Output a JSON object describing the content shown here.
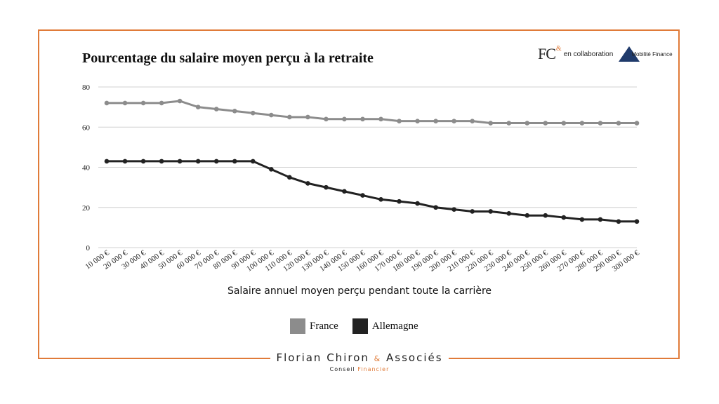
{
  "brand": {
    "fc_logo": "FC",
    "fc_amp": "&",
    "collaboration": "en collaboration",
    "mf_logo": "Mobilité Finance"
  },
  "footer": {
    "name_part1": "Florian Chiron",
    "amp": "&",
    "name_part2": "Associés",
    "sub_part1": "Conseil",
    "sub_part2": "Financier"
  },
  "colors": {
    "frame": "#e07b39",
    "france": "#8c8c8c",
    "allemagne": "#222222",
    "grid": "#d0d0d0"
  },
  "chart_data": {
    "type": "line",
    "title": "Pourcentage du salaire moyen perçu à la retraite",
    "xlabel": "Salaire annuel moyen perçu pendant toute la carrière",
    "ylabel": "",
    "ylim": [
      0,
      80
    ],
    "yticks": [
      "0",
      "20",
      "40",
      "60",
      "80"
    ],
    "grid": true,
    "legend_position": "bottom",
    "categories": [
      "10 000 €",
      "20 000 €",
      "30 000 €",
      "40 000 €",
      "50 000 €",
      "60 000 €",
      "70 000 €",
      "80 000 €",
      "90 000 €",
      "100 000 €",
      "110 000 €",
      "120 000 €",
      "130 000 €",
      "140 000 €",
      "150 000 €",
      "160 000 €",
      "170 000 €",
      "180 000 €",
      "190 000 €",
      "200 000 €",
      "210 000 €",
      "220 000 €",
      "230 000 €",
      "240 000 €",
      "250 000 €",
      "260 000 €",
      "270 000 €",
      "280 000 €",
      "290 000 €",
      "300 000 €"
    ],
    "series": [
      {
        "name": "France",
        "color": "#8c8c8c",
        "values": [
          72,
          72,
          72,
          72,
          73,
          70,
          69,
          68,
          67,
          66,
          65,
          65,
          64,
          64,
          64,
          64,
          63,
          63,
          63,
          63,
          63,
          62,
          62,
          62,
          62,
          62,
          62,
          62,
          62,
          62
        ]
      },
      {
        "name": "Allemagne",
        "color": "#222222",
        "values": [
          43,
          43,
          43,
          43,
          43,
          43,
          43,
          43,
          43,
          39,
          35,
          32,
          30,
          28,
          26,
          24,
          23,
          22,
          20,
          19,
          18,
          18,
          17,
          16,
          16,
          15,
          14,
          14,
          13,
          13
        ]
      }
    ]
  }
}
